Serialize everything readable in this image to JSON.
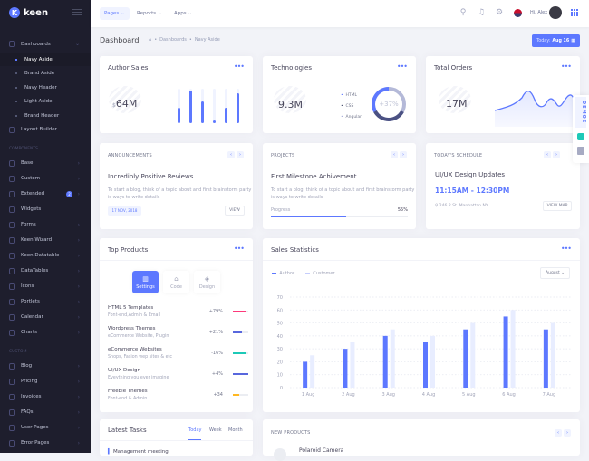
{
  "brand": "keen",
  "sidebar": {
    "items": [
      {
        "label": "Dashboards",
        "type": "group"
      },
      {
        "label": "Navy Aside",
        "type": "sub",
        "active": true
      },
      {
        "label": "Brand Aside",
        "type": "sub"
      },
      {
        "label": "Navy Header",
        "type": "sub"
      },
      {
        "label": "Light Aside",
        "type": "sub"
      },
      {
        "label": "Brand Header",
        "type": "sub"
      },
      {
        "label": "Layout Builder",
        "type": "item"
      },
      {
        "label": "COMPONENTS",
        "type": "section"
      },
      {
        "label": "Base",
        "type": "item",
        "chev": true
      },
      {
        "label": "Custom",
        "type": "item",
        "chev": true
      },
      {
        "label": "Extended",
        "type": "item",
        "chev": true,
        "badge": "2"
      },
      {
        "label": "Widgets",
        "type": "item"
      },
      {
        "label": "Forms",
        "type": "item",
        "chev": true
      },
      {
        "label": "Keen Wizard",
        "type": "item",
        "chev": true
      },
      {
        "label": "Keen Datatable",
        "type": "item",
        "chev": true
      },
      {
        "label": "DataTables",
        "type": "item",
        "chev": true
      },
      {
        "label": "Icons",
        "type": "item",
        "chev": true
      },
      {
        "label": "Portlets",
        "type": "item",
        "chev": true
      },
      {
        "label": "Calendar",
        "type": "item",
        "chev": true
      },
      {
        "label": "Charts",
        "type": "item",
        "chev": true
      },
      {
        "label": "CUSTOM",
        "type": "section"
      },
      {
        "label": "Blog",
        "type": "item",
        "chev": true
      },
      {
        "label": "Pricing",
        "type": "item",
        "chev": true
      },
      {
        "label": "Invoices",
        "type": "item",
        "chev": true
      },
      {
        "label": "FAQs",
        "type": "item",
        "chev": true
      },
      {
        "label": "User Pages",
        "type": "item",
        "chev": true
      },
      {
        "label": "Error Pages",
        "type": "item",
        "chev": true
      }
    ]
  },
  "header": {
    "menu": [
      "Pages",
      "Reports",
      "Apps"
    ],
    "greeting": "Hi, Alex"
  },
  "subheader": {
    "title": "Dashboard",
    "breadcrumb": [
      "Dashboards",
      "Navy Aside"
    ],
    "today_label": "Today:",
    "today_date": "Aug 16"
  },
  "author_sales": {
    "title": "Author Sales",
    "currency": "$",
    "value": "64M",
    "bars": [
      0.45,
      0.95,
      0.63,
      0.08,
      0.45,
      0.88
    ]
  },
  "technologies": {
    "title": "Technologies",
    "value": "9.3M",
    "legend": [
      "HTML",
      "CSS",
      "Angular"
    ],
    "donut_label": "+37%"
  },
  "total_orders": {
    "title": "Total Orders",
    "value": "17M"
  },
  "announcements": {
    "title": "ANNOUNCEMENTS",
    "heading": "Incredibly Positive Reviews",
    "text": "To start a blog, think of a topic about and first brainstorm party is ways to write details",
    "date": "17 NOV, 2018",
    "button": "VIEW"
  },
  "projects": {
    "title": "PROJECTS",
    "heading": "First Milestone Achivement",
    "text": "To start a blog, think of a topic about and first brainstorm party is ways to write details",
    "progress_label": "Progress",
    "progress_text": "55%",
    "progress": 0.55
  },
  "schedule": {
    "title": "TODAY'S SCHEDULE",
    "heading": "UI/UX Design Updates",
    "time": "11:15AM - 12:30PM",
    "address": "246 R St. Manhattan NY...",
    "button": "VIEW MAP"
  },
  "demos": {
    "label": "DEMOS"
  },
  "top_products": {
    "title": "Top Products",
    "tabs": [
      "Settings",
      "Code",
      "Design"
    ],
    "items": [
      {
        "name": "HTML 5 Templates",
        "sub": "Font-end,Admin & Email",
        "value": "+79%",
        "fill": 0.8,
        "color": "#fd397a"
      },
      {
        "name": "Wordpress Themes",
        "sub": "eCommerce Website, Plugin",
        "value": "+21%",
        "fill": 0.6,
        "color": "#5867dd"
      },
      {
        "name": "eCommerce Websites",
        "sub": "Shops, Fasion wep sites & etc",
        "value": "-16%",
        "fill": 0.8,
        "color": "#1dc9b7"
      },
      {
        "name": "UI/UX Design",
        "sub": "Eveything you ever imagine",
        "value": "+4%",
        "fill": 1.0,
        "color": "#5867dd"
      },
      {
        "name": "Freebie Themes",
        "sub": "Font-end & Admin",
        "value": "+34",
        "fill": 0.4,
        "color": "#ffb822"
      }
    ]
  },
  "sales_statistics": {
    "title": "Sales Statistics",
    "dropdown": "August"
  },
  "chart_data": {
    "type": "bar",
    "title": "Sales Statistics",
    "categories": [
      "1 Aug",
      "2 Aug",
      "3 Aug",
      "4 Aug",
      "5 Aug",
      "6 Aug",
      "7 Aug"
    ],
    "series": [
      {
        "name": "Author",
        "values": [
          20,
          30,
          40,
          35,
          45,
          55,
          45
        ],
        "color": "#5d78ff"
      },
      {
        "name": "Customer",
        "values": [
          25,
          35,
          45,
          40,
          50,
          60,
          50
        ],
        "color": "#e8edff"
      }
    ],
    "yticks": [
      0,
      10,
      20,
      30,
      40,
      50,
      60,
      70
    ],
    "ylim": [
      0,
      70
    ],
    "grid": true,
    "legend": "top-left"
  },
  "latest_tasks": {
    "title": "Latest Tasks",
    "tabs": [
      "Today",
      "Week",
      "Month"
    ],
    "first_item": "Management meeting"
  },
  "new_products": {
    "title": "NEW PRODUCTS",
    "first_item": "Polaroid Camera"
  }
}
